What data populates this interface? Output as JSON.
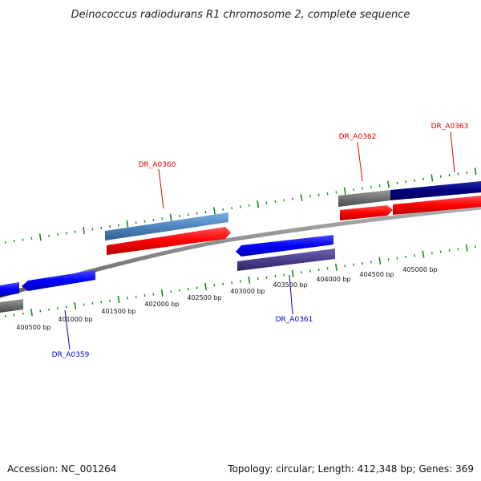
{
  "title": "Deinococcus radiodurans R1 chromosome 2, complete sequence",
  "footer": {
    "accession": "Accession: NC_001264",
    "summary": "Topology: circular; Length: 412,348 bp; Genes: 369"
  },
  "colors": {
    "backbone": "#8a8a8a",
    "tick": "#1a8a1a",
    "gene_forward": "#ff0000",
    "gene_reverse": "#0000ff",
    "cds_steel": "#4f86bf",
    "cds_navy": "#000080",
    "cds_slate": "#4a3f8c",
    "cds_gray": "#707070",
    "label_red": "#e00000",
    "label_blue": "#0000c8"
  },
  "axis": {
    "tick_labels": [
      "400500 bp",
      "401000 bp",
      "401500 bp",
      "402000 bp",
      "402500 bp",
      "403000 bp",
      "403500 bp",
      "404000 bp",
      "404500 bp",
      "405000 bp"
    ]
  },
  "genes": [
    {
      "id": "DR_A0359",
      "label": "DR_A0359",
      "strand": "reverse",
      "color_key": "label_blue"
    },
    {
      "id": "DR_A0360",
      "label": "DR_A0360",
      "strand": "forward",
      "color_key": "label_red"
    },
    {
      "id": "DR_A0361",
      "label": "DR_A0361",
      "strand": "reverse",
      "color_key": "label_blue"
    },
    {
      "id": "DR_A0362",
      "label": "DR_A0362",
      "strand": "forward",
      "color_key": "label_red"
    },
    {
      "id": "DR_A0363",
      "label": "DR_A0363",
      "strand": "forward",
      "color_key": "label_red"
    }
  ]
}
